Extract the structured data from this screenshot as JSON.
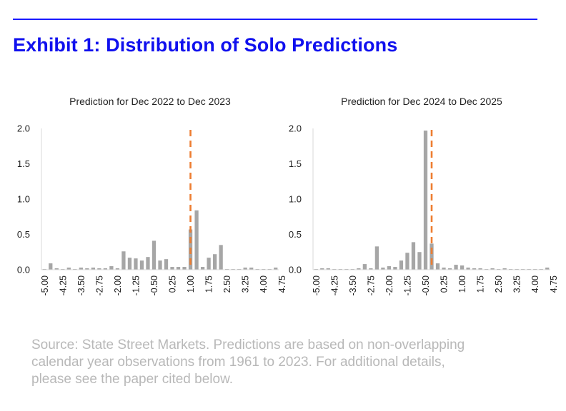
{
  "exhibit": {
    "title": "Exhibit 1: Distribution of Solo Predictions"
  },
  "source_note": "Source: State Street Markets. Predictions are based on non-overlapping calendar year observations from 1961 to 2023. For additional details, please see the paper cited below.",
  "colors": {
    "accent_rule": "#1a1aff",
    "title": "#1010ee",
    "bars": "#a6a6a6",
    "marker": "#ed7d31",
    "note": "#b8b8b8"
  },
  "chart_data": [
    {
      "type": "bar",
      "title": "Prediction for Dec 2022 to Dec 2023",
      "x_start": -5.0,
      "x_step": 0.25,
      "x_tick_labels": [
        "-5.00",
        "-4.25",
        "-3.50",
        "-2.75",
        "-2.00",
        "-1.25",
        "-0.50",
        "0.25",
        "1.00",
        "1.75",
        "2.50",
        "3.25",
        "4.00",
        "4.75"
      ],
      "y_tick_labels": [
        "0.0",
        "0.5",
        "1.0",
        "1.5",
        "2.0"
      ],
      "ylim": [
        0,
        2.0
      ],
      "values": [
        0.01,
        0.09,
        0.02,
        0.01,
        0.03,
        0.01,
        0.03,
        0.02,
        0.03,
        0.02,
        0.02,
        0.05,
        0.02,
        0.26,
        0.17,
        0.16,
        0.13,
        0.18,
        0.41,
        0.13,
        0.15,
        0.04,
        0.04,
        0.04,
        0.57,
        0.84,
        0.04,
        0.17,
        0.22,
        0.35,
        0.01,
        0.01,
        0.01,
        0.03,
        0.03,
        0.01,
        0.01,
        0.01,
        0.03
      ],
      "marker_x": 1.0,
      "marker_label": "dashed reference line",
      "grid": false,
      "legend": "none"
    },
    {
      "type": "bar",
      "title": "Prediction for Dec 2024 to Dec 2025",
      "x_start": -5.0,
      "x_step": 0.25,
      "x_tick_labels": [
        "-5.00",
        "-4.25",
        "-3.50",
        "-2.75",
        "-2.00",
        "-1.25",
        "-0.50",
        "0.25",
        "1.00",
        "1.75",
        "2.50",
        "3.25",
        "4.00",
        "4.75"
      ],
      "y_tick_labels": [
        "0.0",
        "0.5",
        "1.0",
        "1.5",
        "2.0"
      ],
      "ylim": [
        0,
        2.0
      ],
      "values": [
        0.01,
        0.02,
        0.02,
        0.01,
        0.01,
        0.01,
        0.01,
        0.02,
        0.08,
        0.02,
        0.33,
        0.03,
        0.05,
        0.04,
        0.13,
        0.24,
        0.39,
        0.25,
        1.97,
        0.37,
        0.09,
        0.03,
        0.02,
        0.07,
        0.06,
        0.03,
        0.02,
        0.02,
        0.01,
        0.02,
        0.01,
        0.02,
        0.01,
        0.01,
        0.01,
        0.01,
        0.01,
        0.01,
        0.03
      ],
      "marker_x": -0.25,
      "marker_label": "dashed reference line",
      "grid": false,
      "legend": "none"
    }
  ]
}
